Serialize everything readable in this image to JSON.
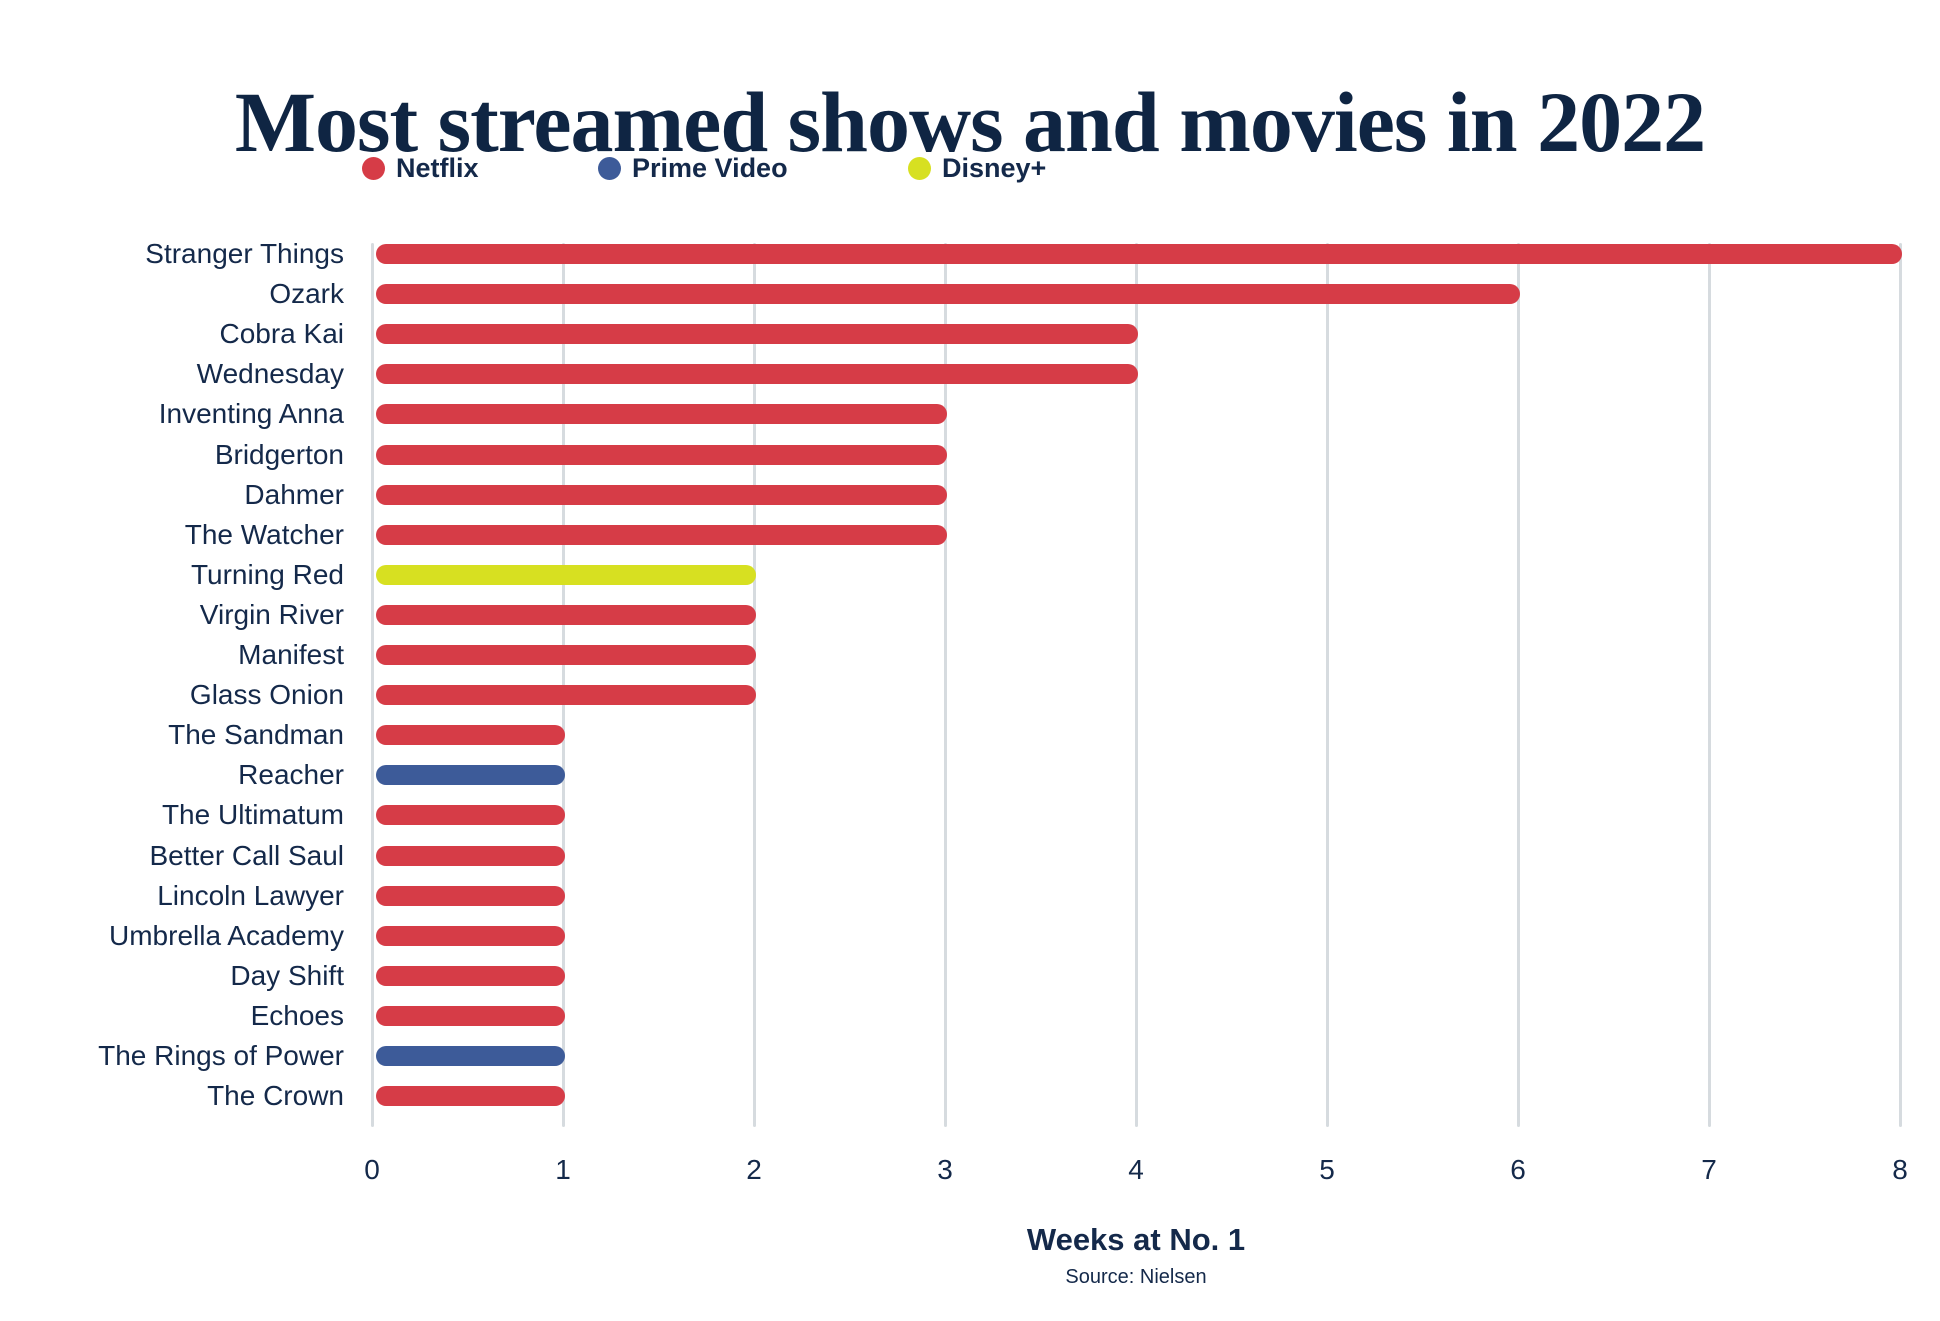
{
  "title": "Most streamed shows and movies in 2022",
  "chart_data": {
    "type": "bar",
    "orientation": "horizontal",
    "title": "Most streamed shows and movies in 2022",
    "xlabel": "Weeks at No. 1",
    "source": "Source: Nielsen",
    "xlim": [
      0,
      8
    ],
    "xticks": [
      "0",
      "1",
      "2",
      "3",
      "4",
      "5",
      "6",
      "7",
      "8"
    ],
    "grid": "vertical-gridlines-on",
    "legend_position": "top",
    "legend": [
      {
        "label": "Netflix",
        "color": "#d63c47"
      },
      {
        "label": "Prime Video",
        "color": "#3d5b99"
      },
      {
        "label": "Disney+",
        "color": "#d7e021"
      }
    ],
    "bars": [
      {
        "label": "Stranger Things",
        "value": 8,
        "platform": "Netflix"
      },
      {
        "label": "Ozark",
        "value": 6,
        "platform": "Netflix"
      },
      {
        "label": "Cobra Kai",
        "value": 4,
        "platform": "Netflix"
      },
      {
        "label": "Wednesday",
        "value": 4,
        "platform": "Netflix"
      },
      {
        "label": "Inventing Anna",
        "value": 3,
        "platform": "Netflix"
      },
      {
        "label": "Bridgerton",
        "value": 3,
        "platform": "Netflix"
      },
      {
        "label": "Dahmer",
        "value": 3,
        "platform": "Netflix"
      },
      {
        "label": "The Watcher",
        "value": 3,
        "platform": "Netflix"
      },
      {
        "label": "Turning Red",
        "value": 2,
        "platform": "Disney+"
      },
      {
        "label": "Virgin River",
        "value": 2,
        "platform": "Netflix"
      },
      {
        "label": "Manifest",
        "value": 2,
        "platform": "Netflix"
      },
      {
        "label": "Glass Onion",
        "value": 2,
        "platform": "Netflix"
      },
      {
        "label": "The Sandman",
        "value": 1,
        "platform": "Netflix"
      },
      {
        "label": "Reacher",
        "value": 1,
        "platform": "Prime Video"
      },
      {
        "label": "The Ultimatum",
        "value": 1,
        "platform": "Netflix"
      },
      {
        "label": "Better Call Saul",
        "value": 1,
        "platform": "Netflix"
      },
      {
        "label": "Lincoln Lawyer",
        "value": 1,
        "platform": "Netflix"
      },
      {
        "label": "Umbrella Academy",
        "value": 1,
        "platform": "Netflix"
      },
      {
        "label": "Day Shift",
        "value": 1,
        "platform": "Netflix"
      },
      {
        "label": "Echoes",
        "value": 1,
        "platform": "Netflix"
      },
      {
        "label": "The Rings of Power",
        "value": 1,
        "platform": "Prime Video"
      },
      {
        "label": "The Crown",
        "value": 1,
        "platform": "Netflix"
      }
    ]
  },
  "colors": {
    "text_navy": "#14294a",
    "title_navy": "#0f2543",
    "gridline_gray": "#d6dbdf",
    "background": "#ffffff"
  },
  "layout_hints": {
    "x_axis_ticks_visible": "0 through 8",
    "bar_ends": "rounded"
  }
}
